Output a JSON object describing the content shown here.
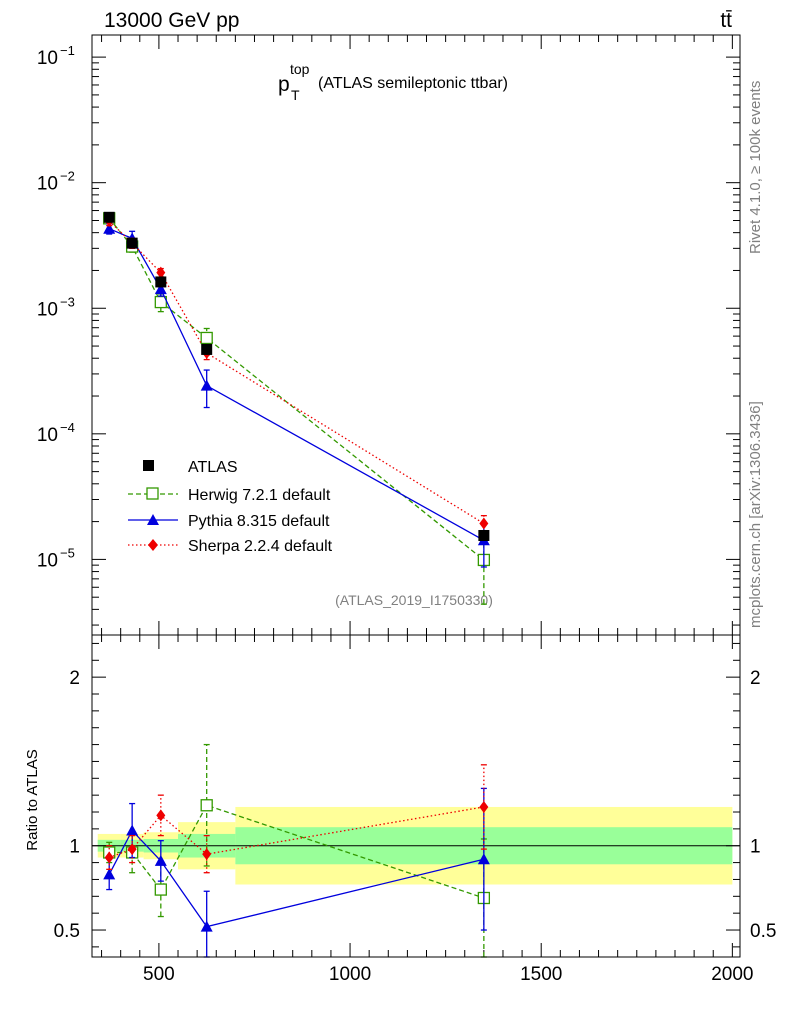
{
  "header": {
    "energy_label": "13000 GeV pp",
    "process_label": "tt̄",
    "plot_title_main": "p",
    "plot_title_sub": "T",
    "plot_title_sup": "top",
    "plot_title_rest": " (ATLAS semileptonic ttbar)",
    "analysis_id": "(ATLAS_2019_I1750330)"
  },
  "side": {
    "rivet": "Rivet 4.1.0, ≥ 100k events",
    "mcplots": "mcplots.cern.ch [arXiv:1306.3436]"
  },
  "colors": {
    "atlas": "#000000",
    "herwig": "#339900",
    "pythia": "#0000dd",
    "sherpa": "#ee0000",
    "band_inner": "#99ff99",
    "band_outer": "#ffff99"
  },
  "chart_data": [
    {
      "type": "scatter",
      "panel": "main",
      "title": "p_T^top (ATLAS semileptonic ttbar)",
      "xlabel": "",
      "ylabel": "",
      "yscale": "log",
      "xlim": [
        325,
        2020
      ],
      "ylim": [
        2.5e-06,
        0.15
      ],
      "y_ticks": [
        {
          "v": 0.1,
          "label": "10",
          "exp": "−1"
        },
        {
          "v": 0.01,
          "label": "10",
          "exp": "−2"
        },
        {
          "v": 0.001,
          "label": "10",
          "exp": "−3"
        },
        {
          "v": 0.0001,
          "label": "10",
          "exp": "−4"
        },
        {
          "v": 1e-05,
          "label": "10",
          "exp": "−5"
        }
      ],
      "legend": [
        {
          "key": "atlas",
          "label": "ATLAS"
        },
        {
          "key": "herwig",
          "label": "Herwig 7.2.1 default"
        },
        {
          "key": "pythia",
          "label": "Pythia 8.315 default"
        },
        {
          "key": "sherpa",
          "label": "Sherpa 2.2.4 default"
        }
      ],
      "series": [
        {
          "key": "atlas",
          "name": "ATLAS",
          "x": [
            370,
            430,
            505,
            625,
            1350
          ],
          "y": [
            0.0053,
            0.0033,
            0.00162,
            0.00047,
            1.55e-05
          ],
          "err_lo": [
            0.00028,
            0.00018,
            8e-05,
            3e-05,
            1.2e-06
          ],
          "err_hi": [
            0.00028,
            0.00018,
            8e-05,
            3e-05,
            1.2e-06
          ]
        },
        {
          "key": "herwig",
          "name": "Herwig 7.2.1 default",
          "x": [
            370,
            430,
            505,
            625,
            1350
          ],
          "y": [
            0.0052,
            0.0031,
            0.00112,
            0.00058,
            9.9e-06
          ],
          "err_lo": [
            0.0004,
            0.0003,
            0.00018,
            9e-05,
            5.5e-06
          ],
          "err_hi": [
            0.0004,
            0.0003,
            0.00018,
            0.00011,
            4e-06
          ]
        },
        {
          "key": "pythia",
          "name": "Pythia 8.315 default",
          "x": [
            370,
            430,
            505,
            625,
            1350
          ],
          "y": [
            0.0043,
            0.0036,
            0.00142,
            0.000242,
            1.42e-05
          ],
          "err_lo": [
            0.0004,
            0.0005,
            0.00017,
            8e-05,
            5.5e-06
          ],
          "err_hi": [
            0.0004,
            0.0005,
            0.00017,
            8e-05,
            5.5e-06
          ]
        },
        {
          "key": "sherpa",
          "name": "Sherpa 2.2.4 default",
          "x": [
            370,
            430,
            505,
            625,
            1350
          ],
          "y": [
            0.00495,
            0.0033,
            0.00192,
            0.00044,
            1.93e-05
          ],
          "err_lo": [
            0.0004,
            0.0003,
            0.00015,
            5e-05,
            3e-06
          ],
          "err_hi": [
            0.0004,
            0.0003,
            0.00015,
            5e-05,
            3e-06
          ]
        }
      ]
    },
    {
      "type": "scatter",
      "panel": "ratio",
      "xlabel": "",
      "ylabel": "Ratio to ATLAS",
      "xlim": [
        325,
        2020
      ],
      "ylim": [
        0.34,
        2.25
      ],
      "x_ticks": [
        500,
        1000,
        1500,
        2000
      ],
      "y_ticks": [
        0.5,
        1,
        2
      ],
      "bins": [
        {
          "x0": 340,
          "x1": 400,
          "inner": 0.035,
          "outer": 0.07
        },
        {
          "x0": 400,
          "x1": 460,
          "inner": 0.035,
          "outer": 0.07
        },
        {
          "x0": 460,
          "x1": 550,
          "inner": 0.04,
          "outer": 0.08
        },
        {
          "x0": 550,
          "x1": 700,
          "inner": 0.07,
          "outer": 0.14
        },
        {
          "x0": 700,
          "x1": 2000,
          "inner": 0.11,
          "outer": 0.23
        }
      ],
      "series": [
        {
          "key": "herwig",
          "name": "Herwig 7.2.1 default",
          "x": [
            370,
            430,
            505,
            625,
            1350
          ],
          "y": [
            0.96,
            0.96,
            0.74,
            1.24,
            0.69
          ],
          "err_lo": [
            0.06,
            0.12,
            0.16,
            0.36,
            0.35
          ],
          "err_hi": [
            0.06,
            0.12,
            0.16,
            0.36,
            0.35
          ]
        },
        {
          "key": "pythia",
          "name": "Pythia 8.315 default",
          "x": [
            370,
            430,
            505,
            625,
            1350
          ],
          "y": [
            0.83,
            1.09,
            0.91,
            0.52,
            0.92
          ],
          "err_lo": [
            0.09,
            0.16,
            0.12,
            0.21,
            0.42
          ],
          "err_hi": [
            0.09,
            0.16,
            0.12,
            0.21,
            0.42
          ]
        },
        {
          "key": "sherpa",
          "name": "Sherpa 2.2.4 default",
          "x": [
            370,
            430,
            505,
            625,
            1350
          ],
          "y": [
            0.93,
            0.98,
            1.18,
            0.95,
            1.23
          ],
          "err_lo": [
            0.07,
            0.08,
            0.12,
            0.11,
            0.25
          ],
          "err_hi": [
            0.07,
            0.08,
            0.12,
            0.11,
            0.25
          ]
        }
      ]
    }
  ]
}
